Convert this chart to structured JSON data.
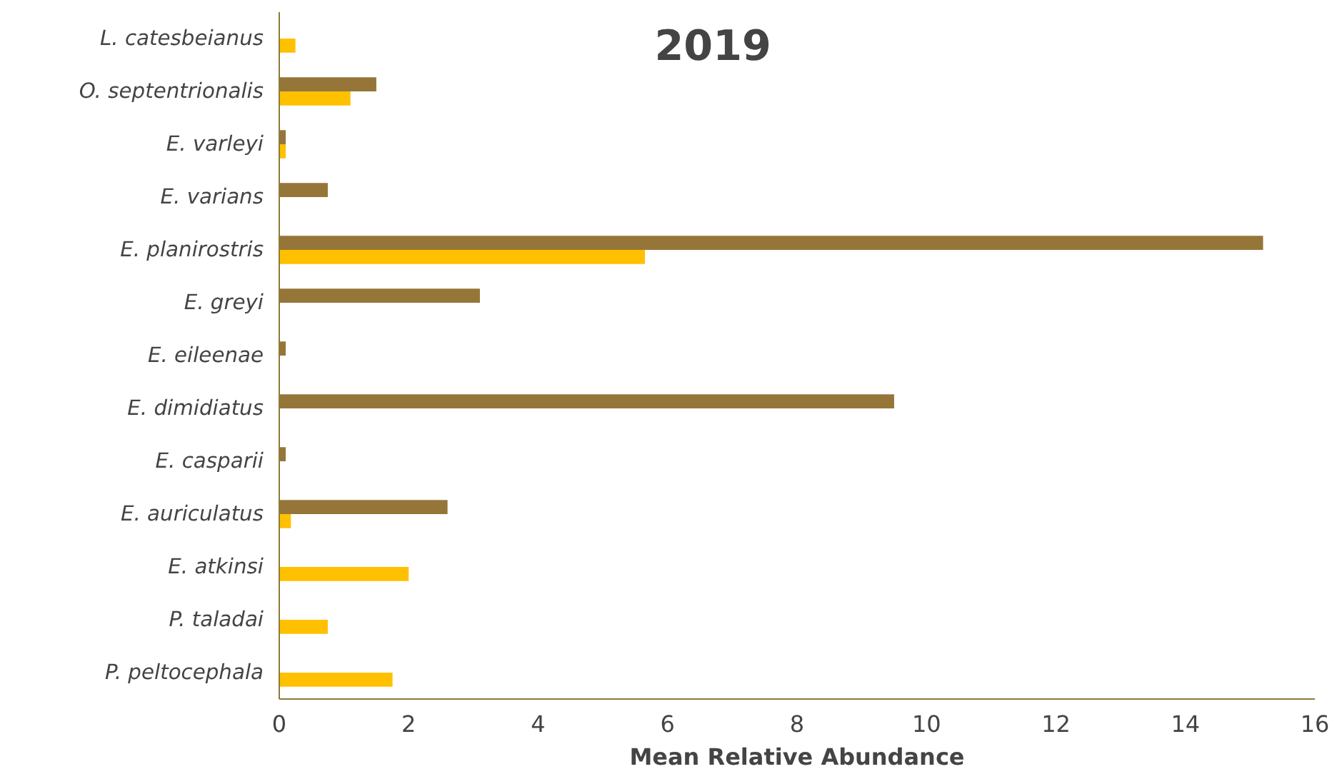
{
  "chart_data": {
    "type": "bar",
    "orientation": "horizontal",
    "title": "2019",
    "xlabel": "Mean Relative Abundance",
    "categories": [
      "L. catesbeianus",
      "O. septentrionalis",
      "E. varleyi",
      "E. varians",
      "E. planirostris",
      "E. greyi",
      "E. eileenae",
      "E. dimidiatus",
      "E. casparii",
      "E. auriculatus",
      "E. atkinsi",
      "P. taladai",
      "P. peltocephala"
    ],
    "series": [
      {
        "color": "#957638",
        "values": [
          null,
          1.5,
          0.1,
          0.75,
          15.2,
          3.1,
          0.1,
          9.5,
          0.1,
          2.6,
          null,
          null,
          null
        ]
      },
      {
        "color": "#ffc000",
        "values": [
          0.25,
          1.1,
          0.1,
          null,
          5.65,
          null,
          null,
          null,
          null,
          0.18,
          2.0,
          0.75,
          1.75
        ]
      }
    ],
    "xlim": [
      0,
      16
    ],
    "xticks": [
      0,
      2,
      4,
      6,
      8,
      10,
      12,
      14,
      16
    ],
    "grid": false
  }
}
